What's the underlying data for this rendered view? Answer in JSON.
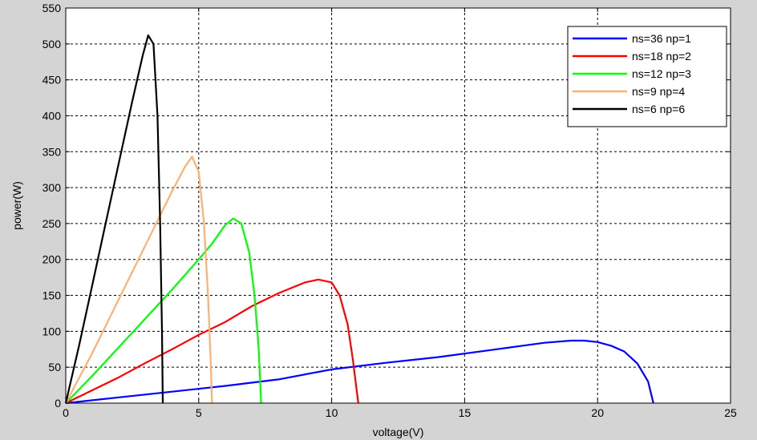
{
  "colors": {
    "figure_background": "#d4d4d4",
    "axes_background": "#ffffff",
    "grid": "#000000"
  },
  "chart_data": {
    "type": "line",
    "title": "",
    "xlabel": "voltage(V)",
    "ylabel": "power(W)",
    "xlim": [
      0,
      25
    ],
    "ylim": [
      0,
      550
    ],
    "xticks": [
      0,
      5,
      10,
      15,
      20,
      25
    ],
    "yticks": [
      0,
      50,
      100,
      150,
      200,
      250,
      300,
      350,
      400,
      450,
      500,
      550
    ],
    "grid": true,
    "grid_style": "dashed",
    "legend_position": "top-right",
    "series": [
      {
        "name": "ns=36 np=1",
        "color": "#0000ff",
        "x": [
          0,
          2,
          4,
          6,
          8,
          10,
          12,
          14,
          16,
          17,
          18,
          19,
          19.5,
          20,
          20.5,
          21,
          21.5,
          21.9,
          22.1
        ],
        "y": [
          0,
          8,
          16,
          24,
          33,
          47,
          56,
          64,
          74,
          79,
          84,
          87,
          87,
          85,
          80,
          72,
          55,
          30,
          0
        ]
      },
      {
        "name": "ns=18 np=2",
        "color": "#ff0000",
        "x": [
          0,
          1,
          2,
          3,
          4,
          5,
          6,
          7,
          8,
          9,
          9.5,
          10,
          10.3,
          10.6,
          10.8,
          11.0
        ],
        "y": [
          0,
          18,
          36,
          56,
          75,
          95,
          113,
          135,
          153,
          168,
          172,
          168,
          150,
          110,
          60,
          0
        ]
      },
      {
        "name": "ns=12 np=3",
        "color": "#00ff00",
        "x": [
          0,
          1,
          2,
          3,
          4,
          5,
          5.5,
          6,
          6.3,
          6.6,
          6.9,
          7.1,
          7.25,
          7.35
        ],
        "y": [
          0,
          38,
          78,
          118,
          158,
          200,
          222,
          248,
          257,
          250,
          210,
          150,
          80,
          0
        ]
      },
      {
        "name": "ns=9 np=4",
        "color": "#ffb070",
        "x": [
          0,
          1,
          2,
          3,
          4,
          4.5,
          4.75,
          5.0,
          5.2,
          5.35,
          5.45,
          5.5
        ],
        "y": [
          0,
          70,
          145,
          220,
          295,
          330,
          343,
          322,
          250,
          150,
          60,
          0
        ]
      },
      {
        "name": "ns=6 np=6",
        "color": "#000000",
        "x": [
          0,
          0.5,
          1,
          1.5,
          2,
          2.5,
          2.9,
          3.1,
          3.3,
          3.45,
          3.55,
          3.62,
          3.65
        ],
        "y": [
          0,
          80,
          165,
          250,
          335,
          420,
          485,
          512,
          500,
          400,
          250,
          100,
          0
        ]
      }
    ]
  }
}
